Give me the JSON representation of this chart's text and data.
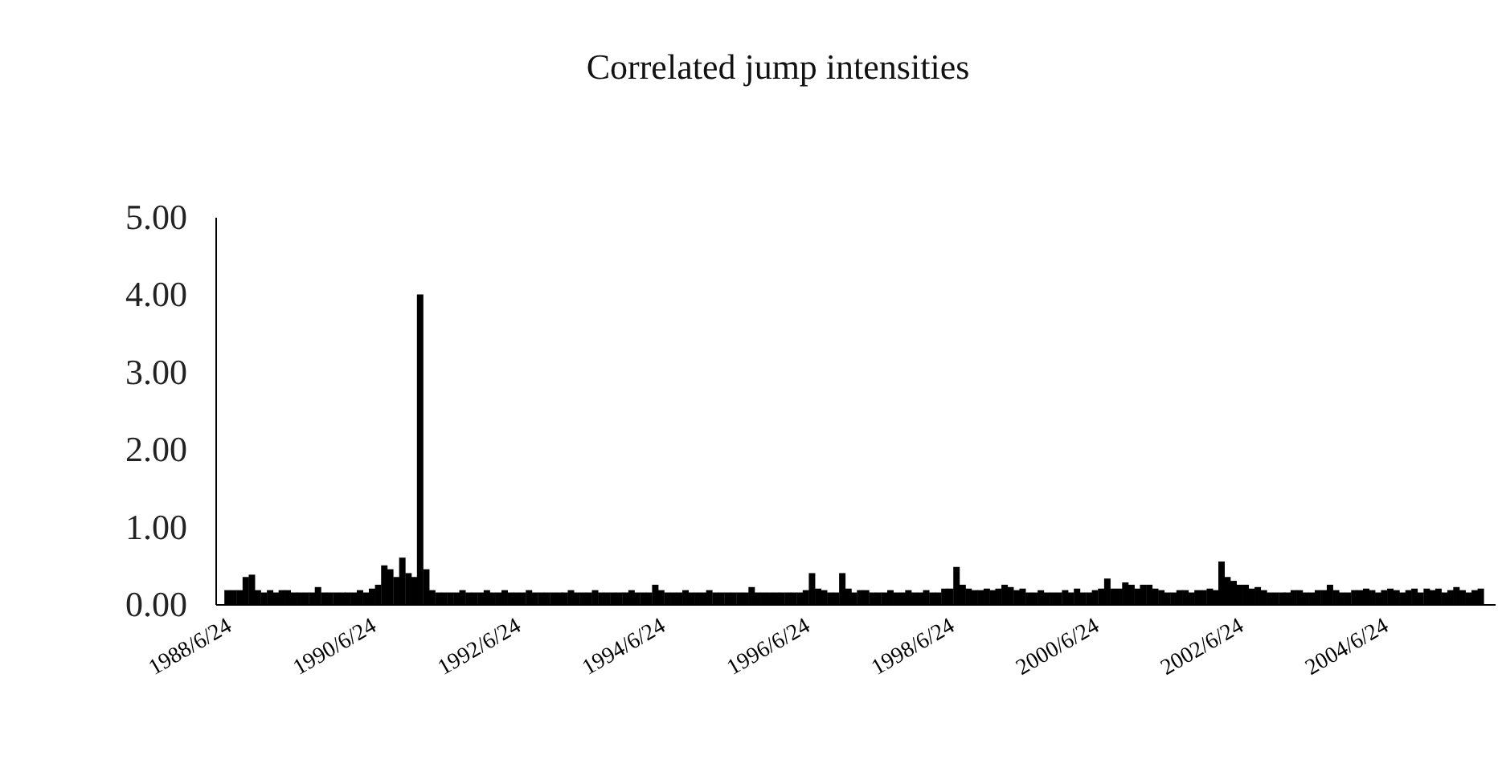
{
  "chart_data": {
    "type": "bar",
    "title": "Correlated jump intensities",
    "x": [
      "1988-07-15",
      "1988-08-15",
      "1988-09-15",
      "1988-10-15",
      "1988-11-15",
      "1988-12-15",
      "1989-01-15",
      "1989-02-15",
      "1989-03-15",
      "1989-04-15",
      "1989-05-15",
      "1989-06-15",
      "1989-07-15",
      "1989-08-15",
      "1989-09-15",
      "1989-10-15",
      "1989-11-15",
      "1989-12-15",
      "1990-01-15",
      "1990-02-15",
      "1990-03-15",
      "1990-04-15",
      "1990-05-15",
      "1990-06-15",
      "1990-07-15",
      "1990-08-15",
      "1990-09-15",
      "1990-10-15",
      "1990-11-15",
      "1990-12-15",
      "1991-01-15",
      "1991-02-15",
      "1991-03-15",
      "1991-04-15",
      "1991-05-15",
      "1991-06-15",
      "1991-07-15",
      "1991-08-15",
      "1991-09-15",
      "1991-10-15",
      "1991-11-15",
      "1991-12-15",
      "1992-01-15",
      "1992-02-15",
      "1992-03-15",
      "1992-04-15",
      "1992-05-15",
      "1992-06-15",
      "1992-07-15",
      "1992-08-15",
      "1992-09-15",
      "1992-10-15",
      "1992-11-15",
      "1992-12-15",
      "1993-01-15",
      "1993-02-15",
      "1993-03-15",
      "1993-04-15",
      "1993-05-15",
      "1993-06-15",
      "1993-07-15",
      "1993-08-15",
      "1993-09-15",
      "1993-10-15",
      "1993-11-15",
      "1993-12-15",
      "1994-01-15",
      "1994-02-15",
      "1994-03-15",
      "1994-04-15",
      "1994-05-15",
      "1994-06-15",
      "1994-07-15",
      "1994-08-15",
      "1994-09-15",
      "1994-10-15",
      "1994-11-15",
      "1994-12-15",
      "1995-01-15",
      "1995-02-15",
      "1995-03-15",
      "1995-04-15",
      "1995-05-15",
      "1995-06-15",
      "1995-07-15",
      "1995-08-15",
      "1995-09-15",
      "1995-10-15",
      "1995-11-15",
      "1995-12-15",
      "1996-01-15",
      "1996-02-15",
      "1996-03-15",
      "1996-04-15",
      "1996-05-15",
      "1996-06-15",
      "1996-07-15",
      "1996-08-15",
      "1996-09-15",
      "1996-10-15",
      "1996-11-15",
      "1996-12-15",
      "1997-01-15",
      "1997-02-15",
      "1997-03-15",
      "1997-04-15",
      "1997-05-15",
      "1997-06-15",
      "1997-07-15",
      "1997-08-15",
      "1997-09-15",
      "1997-10-15",
      "1997-11-15",
      "1997-12-15",
      "1998-01-15",
      "1998-02-15",
      "1998-03-15",
      "1998-04-15",
      "1998-05-15",
      "1998-06-15",
      "1998-07-15",
      "1998-08-15",
      "1998-09-15",
      "1998-10-15",
      "1998-11-15",
      "1998-12-15",
      "1999-01-15",
      "1999-02-15",
      "1999-03-15",
      "1999-04-15",
      "1999-05-15",
      "1999-06-15",
      "1999-07-15",
      "1999-08-15",
      "1999-09-15",
      "1999-10-15",
      "1999-11-15",
      "1999-12-15",
      "2000-01-15",
      "2000-02-15",
      "2000-03-15",
      "2000-04-15",
      "2000-05-15",
      "2000-06-15",
      "2000-07-15",
      "2000-08-15",
      "2000-09-15",
      "2000-10-15",
      "2000-11-15",
      "2000-12-15",
      "2001-01-15",
      "2001-02-15",
      "2001-03-15",
      "2001-04-15",
      "2001-05-15",
      "2001-06-15",
      "2001-07-15",
      "2001-08-15",
      "2001-09-15",
      "2001-10-15",
      "2001-11-15",
      "2001-12-15",
      "2002-01-15",
      "2002-02-15",
      "2002-03-15",
      "2002-04-15",
      "2002-05-15",
      "2002-06-15",
      "2002-07-15",
      "2002-08-15",
      "2002-09-15",
      "2002-10-15",
      "2002-11-15",
      "2002-12-15",
      "2003-01-15",
      "2003-02-15",
      "2003-03-15",
      "2003-04-15",
      "2003-05-15",
      "2003-06-15",
      "2003-07-15",
      "2003-08-15",
      "2003-09-15",
      "2003-10-15",
      "2003-11-15",
      "2003-12-15",
      "2004-01-15",
      "2004-02-15",
      "2004-03-15",
      "2004-04-15",
      "2004-05-15",
      "2004-06-15",
      "2004-07-15",
      "2004-08-15",
      "2004-09-15",
      "2004-10-15",
      "2004-11-15",
      "2004-12-15",
      "2005-01-15",
      "2005-02-15",
      "2005-03-15",
      "2005-04-15",
      "2005-05-15",
      "2005-06-15",
      "2005-07-15",
      "2005-08-15",
      "2005-09-15",
      "2005-10-15",
      "2005-11-15"
    ],
    "series": [
      {
        "color": "#000000",
        "values": [
          0.18,
          0.18,
          0.18,
          0.35,
          0.38,
          0.18,
          0.15,
          0.18,
          0.15,
          0.18,
          0.18,
          0.15,
          0.15,
          0.15,
          0.15,
          0.22,
          0.15,
          0.15,
          0.15,
          0.15,
          0.15,
          0.15,
          0.18,
          0.15,
          0.2,
          0.25,
          0.5,
          0.45,
          0.35,
          0.6,
          0.4,
          0.35,
          4.0,
          0.45,
          0.18,
          0.15,
          0.15,
          0.15,
          0.15,
          0.18,
          0.15,
          0.15,
          0.15,
          0.18,
          0.15,
          0.15,
          0.18,
          0.15,
          0.15,
          0.15,
          0.18,
          0.15,
          0.15,
          0.15,
          0.15,
          0.15,
          0.15,
          0.18,
          0.15,
          0.15,
          0.15,
          0.18,
          0.15,
          0.15,
          0.15,
          0.15,
          0.15,
          0.18,
          0.15,
          0.15,
          0.15,
          0.25,
          0.18,
          0.15,
          0.15,
          0.15,
          0.18,
          0.15,
          0.15,
          0.15,
          0.18,
          0.15,
          0.15,
          0.15,
          0.15,
          0.15,
          0.15,
          0.22,
          0.15,
          0.15,
          0.15,
          0.15,
          0.15,
          0.15,
          0.15,
          0.15,
          0.18,
          0.4,
          0.2,
          0.18,
          0.15,
          0.15,
          0.4,
          0.2,
          0.15,
          0.18,
          0.18,
          0.15,
          0.15,
          0.15,
          0.18,
          0.15,
          0.15,
          0.18,
          0.15,
          0.15,
          0.18,
          0.15,
          0.15,
          0.2,
          0.2,
          0.48,
          0.25,
          0.2,
          0.18,
          0.18,
          0.2,
          0.18,
          0.2,
          0.25,
          0.22,
          0.18,
          0.2,
          0.15,
          0.15,
          0.18,
          0.15,
          0.15,
          0.15,
          0.18,
          0.15,
          0.2,
          0.15,
          0.15,
          0.18,
          0.2,
          0.33,
          0.2,
          0.2,
          0.28,
          0.25,
          0.2,
          0.25,
          0.25,
          0.2,
          0.18,
          0.15,
          0.15,
          0.18,
          0.18,
          0.15,
          0.18,
          0.18,
          0.2,
          0.18,
          0.55,
          0.35,
          0.3,
          0.25,
          0.25,
          0.2,
          0.22,
          0.18,
          0.15,
          0.15,
          0.15,
          0.15,
          0.18,
          0.18,
          0.15,
          0.15,
          0.18,
          0.18,
          0.25,
          0.18,
          0.15,
          0.15,
          0.18,
          0.18,
          0.2,
          0.18,
          0.15,
          0.18,
          0.2,
          0.18,
          0.15,
          0.18,
          0.2,
          0.15,
          0.2,
          0.18,
          0.2,
          0.15,
          0.18,
          0.22,
          0.18,
          0.15,
          0.18,
          0.2
        ]
      }
    ],
    "xlim": [
      "1988-06-24",
      "2005-12-15"
    ],
    "xticks": [
      {
        "value": "1988-06-24",
        "label": "1988/6/24"
      },
      {
        "value": "1990-06-24",
        "label": "1990/6/24"
      },
      {
        "value": "1992-06-24",
        "label": "1992/6/24"
      },
      {
        "value": "1994-06-24",
        "label": "1994/6/24"
      },
      {
        "value": "1996-06-24",
        "label": "1996/6/24"
      },
      {
        "value": "1998-06-24",
        "label": "1998/6/24"
      },
      {
        "value": "2000-06-24",
        "label": "2000/6/24"
      },
      {
        "value": "2002-06-24",
        "label": "2002/6/24"
      },
      {
        "value": "2004-06-24",
        "label": "2004/6/24"
      }
    ],
    "ylim": [
      0,
      5
    ],
    "yticks": [
      {
        "value": 0,
        "label": "0.00"
      },
      {
        "value": 1,
        "label": "1.00"
      },
      {
        "value": 2,
        "label": "2.00"
      },
      {
        "value": 3,
        "label": "3.00"
      },
      {
        "value": 4,
        "label": "4.00"
      },
      {
        "value": 5,
        "label": "5.00"
      }
    ],
    "grid": false
  }
}
